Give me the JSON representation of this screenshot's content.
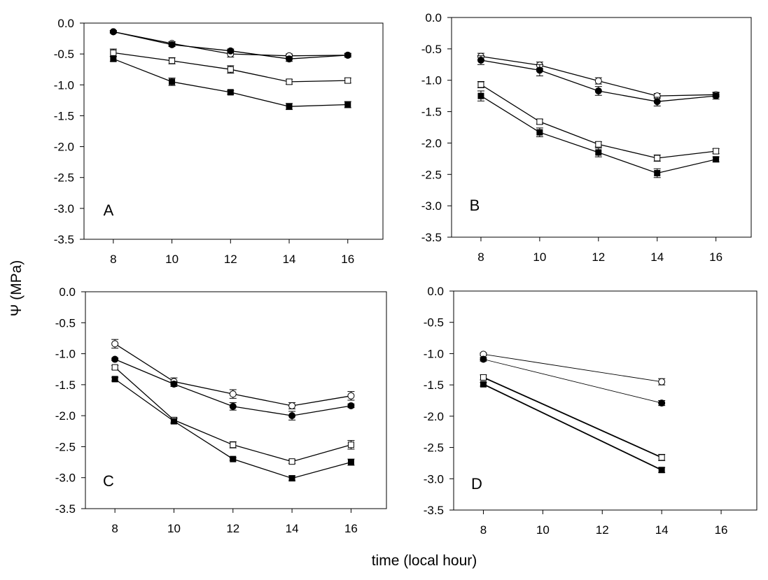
{
  "figure": {
    "ylabel": "Ψ (MPa)",
    "xlabel": "time (local hour)"
  },
  "chart_data": [
    {
      "type": "line",
      "panel": "A",
      "xlim": [
        7,
        17.2
      ],
      "ylim": [
        -3.5,
        0.0
      ],
      "xticks": [
        8,
        10,
        12,
        14,
        16
      ],
      "yticks": [
        -3.5,
        -3.0,
        -2.5,
        -2.0,
        -1.5,
        -1.0,
        -0.5,
        0.0
      ],
      "ytick_labels": [
        "-3.5",
        "-3.0",
        "-2.5",
        "-2.0",
        "-1.5",
        "-1.0",
        "-0.5",
        "0.0"
      ],
      "series": [
        {
          "name": "open circle",
          "marker": "circle",
          "fill": "open",
          "x": [
            8,
            10,
            12,
            14,
            16
          ],
          "values": [
            -0.14,
            -0.33,
            -0.5,
            -0.53,
            -0.52
          ],
          "err": [
            0.02,
            0.03,
            0.05,
            0.03,
            0.03
          ]
        },
        {
          "name": "filled circle",
          "marker": "circle",
          "fill": "filled",
          "x": [
            8,
            10,
            12,
            14,
            16
          ],
          "values": [
            -0.14,
            -0.35,
            -0.45,
            -0.58,
            -0.52
          ],
          "err": [
            0.02,
            0.03,
            0.03,
            0.04,
            0.03
          ]
        },
        {
          "name": "open square",
          "marker": "square",
          "fill": "open",
          "x": [
            8,
            10,
            12,
            14,
            16
          ],
          "values": [
            -0.48,
            -0.61,
            -0.75,
            -0.95,
            -0.93
          ],
          "err": [
            0.06,
            0.05,
            0.06,
            0.04,
            0.04
          ]
        },
        {
          "name": "filled square",
          "marker": "square",
          "fill": "filled",
          "x": [
            8,
            10,
            12,
            14,
            16
          ],
          "values": [
            -0.58,
            -0.95,
            -1.12,
            -1.35,
            -1.32
          ],
          "err": [
            0.04,
            0.06,
            0.03,
            0.05,
            0.05
          ]
        }
      ]
    },
    {
      "type": "line",
      "panel": "B",
      "xlim": [
        7,
        17.2
      ],
      "ylim": [
        -3.5,
        0.0
      ],
      "xticks": [
        8,
        10,
        12,
        14,
        16
      ],
      "yticks": [
        -3.5,
        -3.0,
        -2.5,
        -2.0,
        -1.5,
        -1.0,
        -0.5,
        0.0
      ],
      "ytick_labels": [
        "-3.5",
        "-3.0",
        "-2.5",
        "-2.0",
        "-1.5",
        "-1.0",
        "-0.5",
        "0.0"
      ],
      "series": [
        {
          "name": "open circle",
          "marker": "circle",
          "fill": "open",
          "x": [
            8,
            10,
            12,
            14,
            16
          ],
          "values": [
            -0.62,
            -0.76,
            -1.01,
            -1.25,
            -1.23
          ],
          "err": [
            0.05,
            0.05,
            0.05,
            0.04,
            0.04
          ]
        },
        {
          "name": "filled circle",
          "marker": "circle",
          "fill": "filled",
          "x": [
            8,
            10,
            12,
            14,
            16
          ],
          "values": [
            -0.68,
            -0.84,
            -1.17,
            -1.34,
            -1.25
          ],
          "err": [
            0.07,
            0.09,
            0.07,
            0.07,
            0.05
          ]
        },
        {
          "name": "open square",
          "marker": "square",
          "fill": "open",
          "x": [
            8,
            10,
            12,
            14,
            16
          ],
          "values": [
            -1.07,
            -1.66,
            -2.02,
            -2.24,
            -2.13
          ],
          "err": [
            0.05,
            0.04,
            0.04,
            0.05,
            0.04
          ]
        },
        {
          "name": "filled square",
          "marker": "square",
          "fill": "filled",
          "x": [
            8,
            10,
            12,
            14,
            16
          ],
          "values": [
            -1.25,
            -1.83,
            -2.15,
            -2.48,
            -2.26
          ],
          "err": [
            0.08,
            0.07,
            0.07,
            0.07,
            0.04
          ]
        }
      ]
    },
    {
      "type": "line",
      "panel": "C",
      "xlim": [
        7,
        17.2
      ],
      "ylim": [
        -3.5,
        0.0
      ],
      "xticks": [
        8,
        10,
        12,
        14,
        16
      ],
      "yticks": [
        -3.5,
        -3.0,
        -2.5,
        -2.0,
        -1.5,
        -1.0,
        -0.5,
        0.0
      ],
      "ytick_labels": [
        "-3.5",
        "-3.0",
        "-2.5",
        "-2.0",
        "-1.5",
        "-1.0",
        "-0.5",
        "0.0"
      ],
      "series": [
        {
          "name": "open circle",
          "marker": "circle",
          "fill": "open",
          "x": [
            8,
            10,
            12,
            14,
            16
          ],
          "values": [
            -0.84,
            -1.45,
            -1.65,
            -1.84,
            -1.68
          ],
          "err": [
            0.07,
            0.06,
            0.07,
            0.05,
            0.07
          ]
        },
        {
          "name": "filled circle",
          "marker": "circle",
          "fill": "filled",
          "x": [
            8,
            10,
            12,
            14,
            16
          ],
          "values": [
            -1.09,
            -1.49,
            -1.85,
            -2.0,
            -1.84
          ],
          "err": [
            0.02,
            0.04,
            0.06,
            0.07,
            0.03
          ]
        },
        {
          "name": "open square",
          "marker": "square",
          "fill": "open",
          "x": [
            8,
            10,
            12,
            14,
            16
          ],
          "values": [
            -1.22,
            -2.07,
            -2.47,
            -2.74,
            -2.47
          ],
          "err": [
            0.03,
            0.04,
            0.05,
            0.03,
            0.07
          ]
        },
        {
          "name": "filled square",
          "marker": "square",
          "fill": "filled",
          "x": [
            8,
            10,
            12,
            14,
            16
          ],
          "values": [
            -1.41,
            -2.09,
            -2.7,
            -3.01,
            -2.75
          ],
          "err": [
            0.03,
            0.04,
            0.02,
            0.04,
            0.05
          ]
        }
      ]
    },
    {
      "type": "line",
      "panel": "D",
      "xlim": [
        7,
        17.2
      ],
      "ylim": [
        -3.5,
        0.0
      ],
      "xticks": [
        8,
        10,
        12,
        14,
        16
      ],
      "yticks": [
        -3.5,
        -3.0,
        -2.5,
        -2.0,
        -1.5,
        -1.0,
        -0.5,
        0.0
      ],
      "ytick_labels": [
        "-3.5",
        "-3.0",
        "-2.5",
        "-2.0",
        "-1.5",
        "-1.0",
        "-0.5",
        "0.0"
      ],
      "series": [
        {
          "name": "open circle",
          "marker": "circle",
          "fill": "open",
          "x": [
            8,
            14
          ],
          "values": [
            -1.01,
            -1.45
          ],
          "err": [
            0.02,
            0.05
          ],
          "line": "thin"
        },
        {
          "name": "filled circle",
          "marker": "circle",
          "fill": "filled",
          "x": [
            8,
            14
          ],
          "values": [
            -1.09,
            -1.79
          ],
          "err": [
            0.03,
            0.04
          ],
          "line": "thin"
        },
        {
          "name": "open square",
          "marker": "square",
          "fill": "open",
          "x": [
            8,
            14
          ],
          "values": [
            -1.38,
            -2.66
          ],
          "err": [
            0.04,
            0.05
          ],
          "line": "thick"
        },
        {
          "name": "filled square",
          "marker": "square",
          "fill": "filled",
          "x": [
            8,
            14
          ],
          "values": [
            -1.49,
            -2.86
          ],
          "err": [
            0.03,
            0.04
          ],
          "line": "thick"
        }
      ]
    }
  ]
}
